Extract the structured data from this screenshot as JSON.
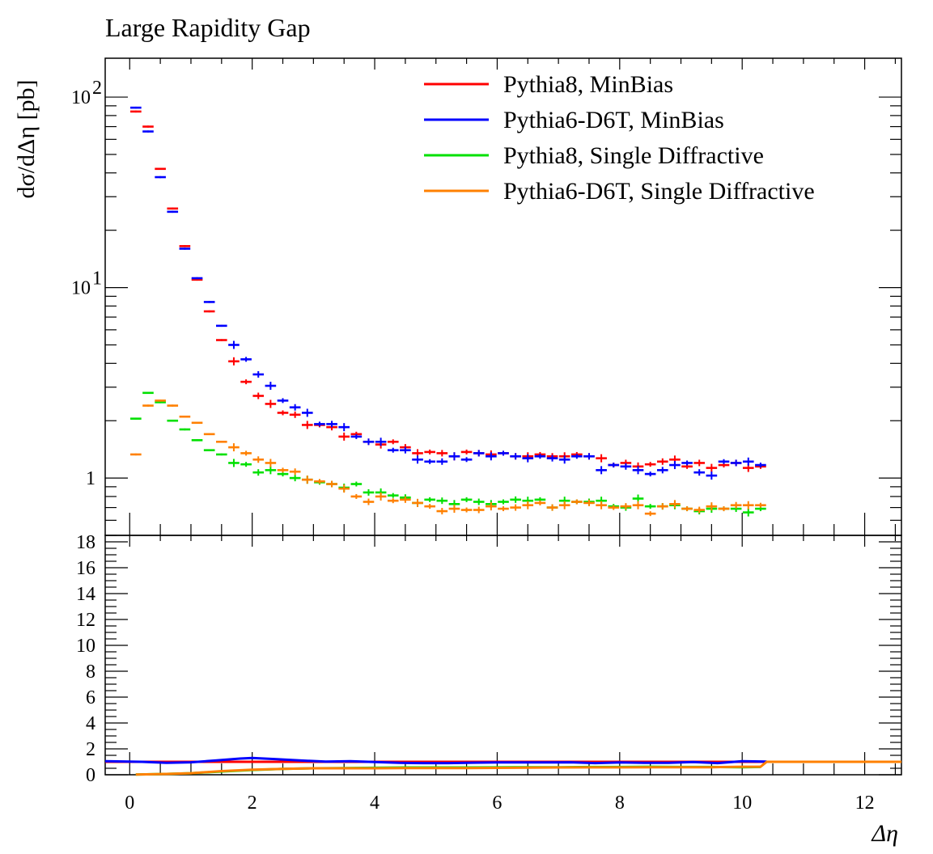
{
  "chart_data": {
    "type": "scatter",
    "title": "Large Rapidity Gap",
    "xlabel": "Δη",
    "ylabel": "dσ/dΔη [pb]",
    "xlim": [
      -0.4,
      12.6
    ],
    "ylim": [
      0.5,
      160
    ],
    "yscale": "log",
    "grid": false,
    "legend_position": "top-right",
    "x_ticks": [
      "0",
      "2",
      "4",
      "6",
      "8",
      "10",
      "12"
    ],
    "y_ticks": [
      {
        "value": 100,
        "base": "10",
        "exp": "2"
      },
      {
        "value": 10,
        "base": "10",
        "exp": "1"
      },
      {
        "value": 1,
        "base": "1",
        "exp": ""
      }
    ],
    "x": [
      0.1,
      0.3,
      0.5,
      0.7,
      0.9,
      1.1,
      1.3,
      1.5,
      1.7,
      1.9,
      2.1,
      2.3,
      2.5,
      2.7,
      2.9,
      3.1,
      3.3,
      3.5,
      3.7,
      3.9,
      4.1,
      4.3,
      4.5,
      4.7,
      4.9,
      5.1,
      5.3,
      5.5,
      5.7,
      5.9,
      6.1,
      6.3,
      6.5,
      6.7,
      6.9,
      7.1,
      7.3,
      7.5,
      7.7,
      7.9,
      8.1,
      8.3,
      8.5,
      8.7,
      8.9,
      9.1,
      9.3,
      9.5,
      9.7,
      9.9,
      10.1,
      10.3
    ],
    "series": [
      {
        "name": "Pythia8, MinBias",
        "color": "#ff0000",
        "values": [
          84,
          70,
          42,
          26,
          16.5,
          11,
          7.5,
          5.3,
          4.1,
          3.2,
          2.7,
          2.45,
          2.2,
          2.15,
          1.9,
          1.9,
          1.85,
          1.65,
          1.7,
          1.55,
          1.5,
          1.55,
          1.45,
          1.35,
          1.37,
          1.35,
          1.3,
          1.37,
          1.35,
          1.33,
          1.35,
          1.3,
          1.3,
          1.33,
          1.3,
          1.3,
          1.33,
          1.3,
          1.27,
          1.17,
          1.2,
          1.15,
          1.18,
          1.22,
          1.25,
          1.15,
          1.2,
          1.13,
          1.17,
          1.2,
          1.13,
          1.15
        ]
      },
      {
        "name": "Pythia6-D6T, MinBias",
        "color": "#0000ff",
        "values": [
          88,
          66,
          38,
          25,
          16,
          11.2,
          8.4,
          6.3,
          5.0,
          4.2,
          3.5,
          3.05,
          2.55,
          2.35,
          2.2,
          1.92,
          1.92,
          1.85,
          1.65,
          1.55,
          1.55,
          1.4,
          1.4,
          1.25,
          1.22,
          1.22,
          1.3,
          1.25,
          1.35,
          1.3,
          1.35,
          1.3,
          1.27,
          1.3,
          1.27,
          1.25,
          1.3,
          1.3,
          1.1,
          1.17,
          1.15,
          1.1,
          1.05,
          1.1,
          1.17,
          1.2,
          1.07,
          1.03,
          1.22,
          1.2,
          1.22,
          1.17
        ]
      },
      {
        "name": "Pythia8, Single Diffractive",
        "color": "#00e000",
        "values": [
          2.05,
          2.8,
          2.5,
          2.0,
          1.8,
          1.58,
          1.4,
          1.33,
          1.2,
          1.18,
          1.07,
          1.1,
          1.05,
          1.0,
          0.98,
          0.95,
          0.93,
          0.89,
          0.93,
          0.84,
          0.84,
          0.81,
          0.79,
          0.74,
          0.77,
          0.76,
          0.73,
          0.77,
          0.75,
          0.73,
          0.75,
          0.77,
          0.76,
          0.77,
          0.7,
          0.76,
          0.75,
          0.75,
          0.76,
          0.71,
          0.7,
          0.78,
          0.71,
          0.71,
          0.72,
          0.69,
          0.67,
          0.69,
          0.69,
          0.69,
          0.66,
          0.69
        ]
      },
      {
        "name": "Pythia6-D6T, Single Diffractive",
        "color": "#ff8000",
        "values": [
          1.33,
          2.4,
          2.55,
          2.4,
          2.1,
          1.95,
          1.7,
          1.55,
          1.45,
          1.35,
          1.25,
          1.2,
          1.1,
          1.08,
          0.98,
          0.96,
          0.93,
          0.88,
          0.8,
          0.75,
          0.8,
          0.76,
          0.77,
          0.74,
          0.71,
          0.67,
          0.69,
          0.68,
          0.68,
          0.71,
          0.69,
          0.7,
          0.72,
          0.74,
          0.7,
          0.72,
          0.75,
          0.74,
          0.72,
          0.7,
          0.71,
          0.72,
          0.65,
          0.71,
          0.73,
          0.69,
          0.68,
          0.71,
          0.69,
          0.72,
          0.72,
          0.72
        ]
      }
    ],
    "ratio_panel": {
      "ylim": [
        0,
        18.5
      ],
      "y_ticks": [
        "0",
        "2",
        "4",
        "6",
        "8",
        "10",
        "12",
        "14",
        "16",
        "18"
      ],
      "series": [
        {
          "name": "Pythia8, MinBias",
          "color": "#ff0000",
          "x": [
            -0.4,
            12.6
          ],
          "values": [
            1.0,
            1.0
          ]
        },
        {
          "name": "Pythia6-D6T, MinBias",
          "color": "#0000ff",
          "x": [
            -0.4,
            0.2,
            0.6,
            1.0,
            1.4,
            1.8,
            2.0,
            2.4,
            2.8,
            3.2,
            3.6,
            4.0,
            4.4,
            4.8,
            5.2,
            5.6,
            6.0,
            6.4,
            6.8,
            7.2,
            7.6,
            8.0,
            8.4,
            8.8,
            9.2,
            9.6,
            10.0,
            10.4
          ],
          "values": [
            1.05,
            1.0,
            0.92,
            0.96,
            1.1,
            1.25,
            1.3,
            1.2,
            1.1,
            1.02,
            1.05,
            0.98,
            0.92,
            0.9,
            0.9,
            0.93,
            0.95,
            0.95,
            0.95,
            0.96,
            0.9,
            0.95,
            0.92,
            0.92,
            0.98,
            0.9,
            1.05,
            1.02
          ]
        },
        {
          "name": "Pythia8, Single Diffractive",
          "color": "#00e000",
          "x": [
            0.1,
            0.6,
            1.0,
            1.5,
            2.0,
            2.5,
            3.0,
            3.5,
            4.0,
            4.5,
            5.0,
            5.5,
            6.0,
            6.5,
            7.0,
            7.5,
            8.0,
            8.5,
            9.0,
            9.5,
            10.0,
            10.3
          ],
          "values": [
            0.02,
            0.06,
            0.12,
            0.25,
            0.37,
            0.45,
            0.5,
            0.52,
            0.54,
            0.56,
            0.56,
            0.56,
            0.57,
            0.58,
            0.58,
            0.6,
            0.6,
            0.62,
            0.6,
            0.6,
            0.58,
            0.6
          ]
        },
        {
          "name": "Pythia6-D6T, Single Diffractive",
          "color": "#ff8000",
          "x": [
            0.1,
            0.6,
            1.0,
            1.5,
            2.0,
            2.5,
            3.0,
            3.5,
            4.0,
            4.5,
            5.0,
            5.5,
            6.0,
            6.5,
            7.0,
            7.5,
            8.0,
            8.5,
            9.0,
            9.5,
            10.0,
            10.3,
            10.4,
            12.6
          ],
          "values": [
            0.02,
            0.06,
            0.12,
            0.28,
            0.39,
            0.45,
            0.5,
            0.5,
            0.5,
            0.52,
            0.52,
            0.52,
            0.53,
            0.55,
            0.56,
            0.57,
            0.57,
            0.58,
            0.58,
            0.58,
            0.62,
            0.62,
            1.0,
            1.0
          ]
        }
      ]
    }
  }
}
